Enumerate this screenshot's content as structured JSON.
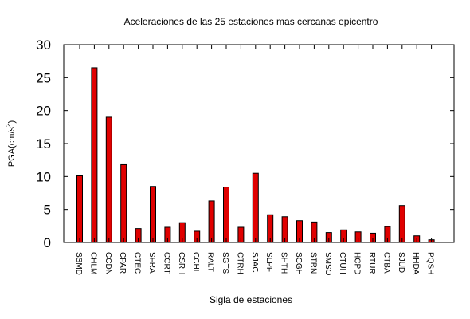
{
  "chart_data": {
    "type": "bar",
    "title": "Aceleraciones de las 25 estaciones mas cercanas epicentro",
    "xlabel": "Sigla de estaciones",
    "ylabel_main": "PGA(cm/s",
    "ylabel_sup": "2",
    "ylabel_close": ")",
    "ylim": [
      0,
      30
    ],
    "yticks": [
      "0",
      "5",
      "10",
      "15",
      "20",
      "25",
      "30"
    ],
    "grid": false,
    "bar_color": "#e00000",
    "categories": [
      "SSMD",
      "CHLM",
      "CCDN",
      "CPAR",
      "CTEC",
      "SFRA",
      "CCRT",
      "CSRH",
      "CCHI",
      "RALT",
      "SGTS",
      "CTRH",
      "SJAC",
      "SLPF",
      "SHTH",
      "SCGH",
      "STRN",
      "SMSO",
      "CTUH",
      "HCPD",
      "RTUR",
      "CTBA",
      "SJUD",
      "HHDA",
      "PQSH"
    ],
    "values": [
      10.1,
      26.5,
      19.0,
      11.8,
      2.1,
      8.5,
      2.3,
      3.0,
      1.7,
      6.3,
      8.4,
      2.3,
      10.5,
      4.2,
      3.9,
      3.3,
      3.1,
      1.5,
      1.9,
      1.6,
      1.4,
      2.4,
      5.6,
      1.0,
      0.4
    ]
  }
}
